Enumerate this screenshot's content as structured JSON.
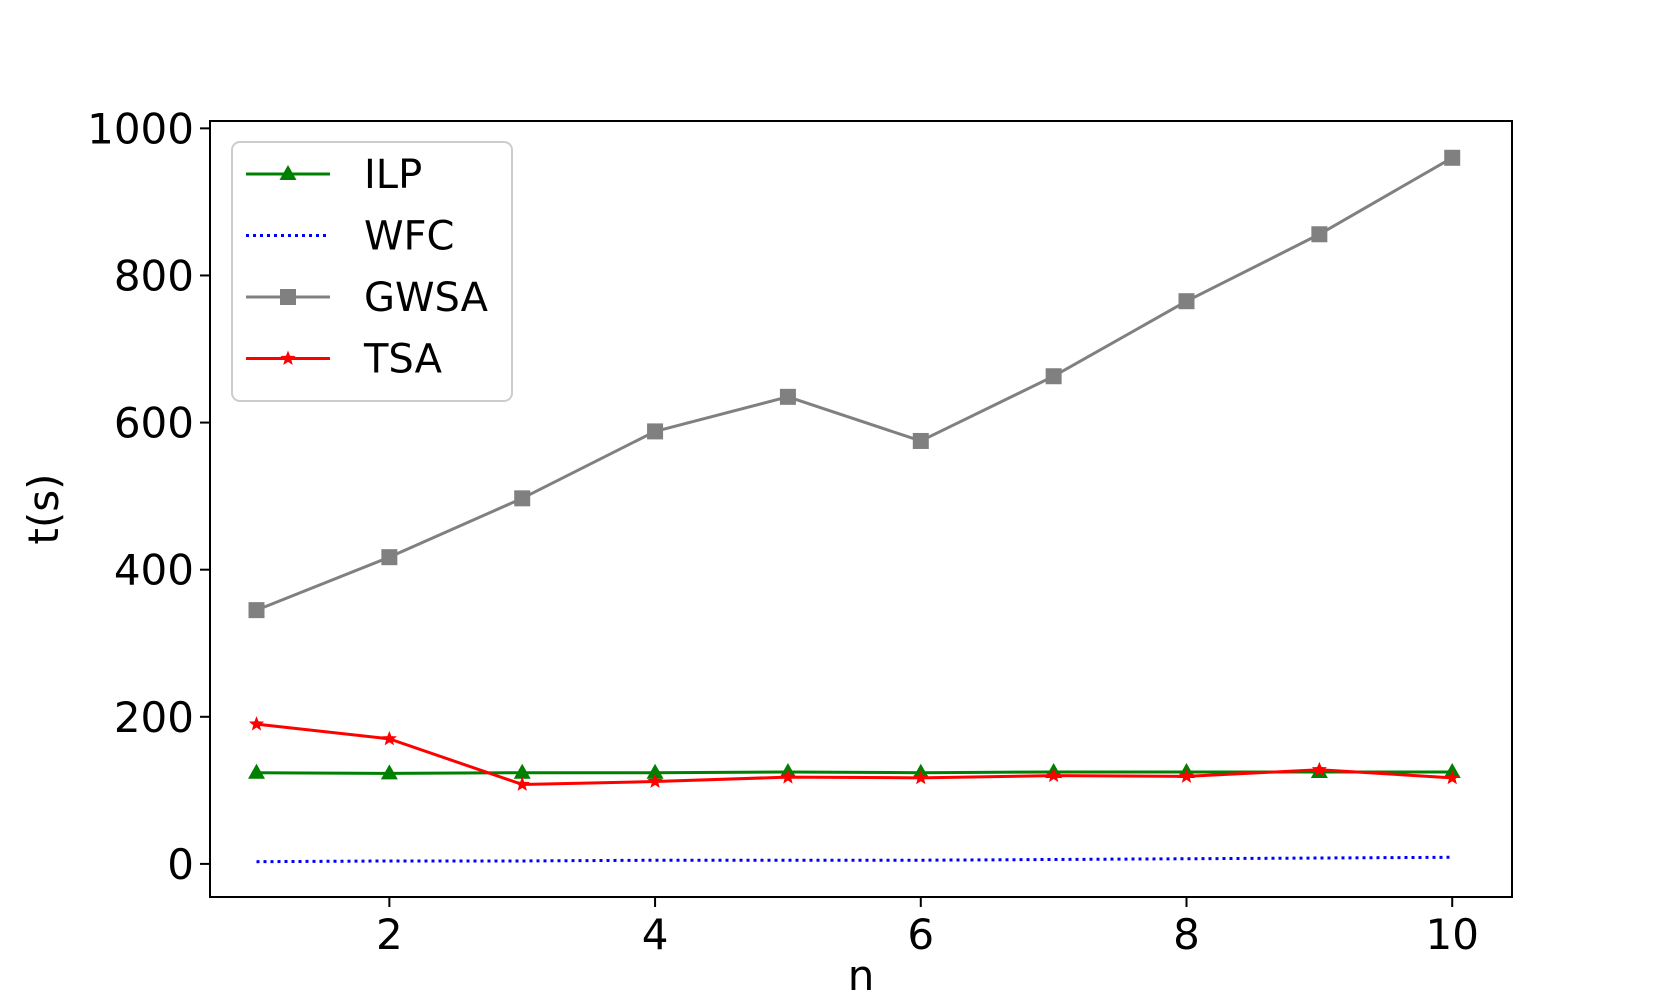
{
  "chart_data": {
    "type": "line",
    "xlabel": "n",
    "ylabel": "t(s)",
    "xlim": [
      0.65,
      10.45
    ],
    "ylim": [
      -45,
      1010
    ],
    "xticks": [
      2,
      4,
      6,
      8,
      10
    ],
    "yticks": [
      0,
      200,
      400,
      600,
      800,
      1000
    ],
    "grid": false,
    "legend_position": "top-left",
    "x": [
      1,
      2,
      3,
      4,
      5,
      6,
      7,
      8,
      9,
      10
    ],
    "series": [
      {
        "name": "ILP",
        "color": "#008000",
        "style": "solid",
        "marker": "triangle",
        "values": [
          124,
          123,
          124,
          124,
          125,
          124,
          125,
          125,
          125,
          125
        ]
      },
      {
        "name": "WFC",
        "color": "#0000ff",
        "style": "dotted",
        "marker": "none",
        "values": [
          3,
          4,
          4,
          5,
          5,
          5,
          6,
          7,
          8,
          9
        ]
      },
      {
        "name": "GWSA",
        "color": "#808080",
        "style": "solid",
        "marker": "square",
        "values": [
          345,
          417,
          497,
          588,
          635,
          575,
          663,
          765,
          856,
          960
        ]
      },
      {
        "name": "TSA",
        "color": "#ff0000",
        "style": "solid",
        "marker": "star",
        "values": [
          190,
          170,
          108,
          112,
          118,
          117,
          120,
          119,
          128,
          117
        ]
      }
    ]
  }
}
